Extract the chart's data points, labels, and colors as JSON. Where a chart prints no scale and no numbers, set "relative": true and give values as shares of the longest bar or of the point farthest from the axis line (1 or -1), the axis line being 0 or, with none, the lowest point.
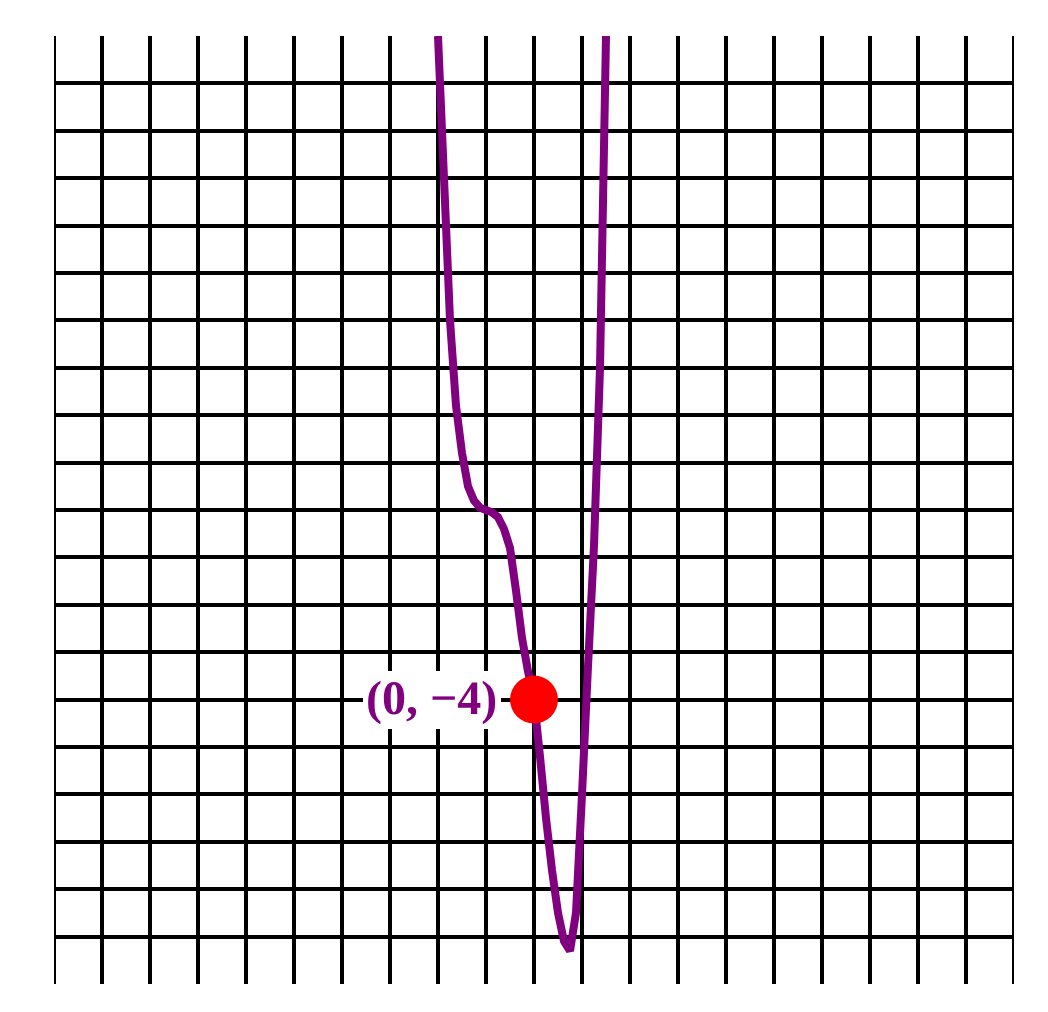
{
  "chart_data": {
    "type": "line",
    "relative": true,
    "grid": true,
    "categories": [
      null,
      null,
      null,
      null,
      null,
      null,
      null,
      null,
      null,
      null,
      null,
      null,
      null,
      null,
      null,
      null,
      null,
      null,
      null,
      null,
      null,
      null,
      null,
      null,
      null,
      null,
      null,
      null,
      null
    ],
    "series": [
      {
        "color": "#800080",
        "values": [
          1,
          0.7,
          0.4,
          0.22,
          0.12,
          0.05,
          0.02,
          0.005,
          0,
          -0.005,
          -0.015,
          -0.04,
          -0.08,
          -0.17,
          -0.27,
          -0.34,
          -0.4,
          -0.52,
          -0.65,
          -0.76,
          -0.85,
          -0.91,
          -0.93,
          -0.85,
          -0.6,
          -0.33,
          -0.075,
          0.3,
          1
        ]
      }
    ],
    "annotations": [
      "(0, −4)"
    ]
  }
}
